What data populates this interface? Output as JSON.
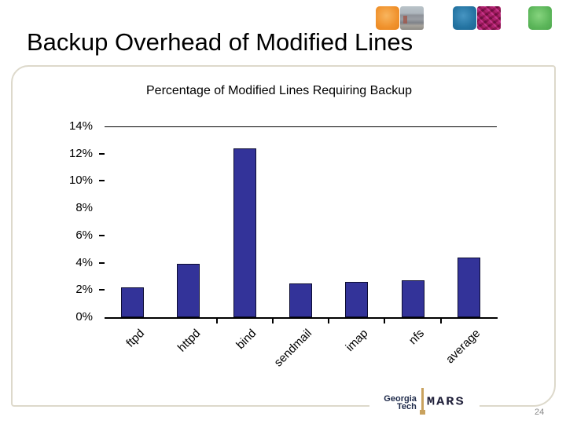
{
  "slide": {
    "title": "Backup Overhead of Modified Lines",
    "page_number": "24"
  },
  "header_logos": [
    "orange-square",
    "campus-photo-square",
    "blue-square",
    "purple-texture-square",
    "green-square"
  ],
  "chart_data": {
    "type": "bar",
    "title": "Percentage of Modified Lines Requiring Backup",
    "categories": [
      "ftpd",
      "httpd",
      "bind",
      "sendmail",
      "imap",
      "nfs",
      "average"
    ],
    "values": [
      2.2,
      3.9,
      12.4,
      2.5,
      2.6,
      2.7,
      4.4
    ],
    "unit": "%",
    "xlabel": "",
    "ylabel": "",
    "ylim": [
      0,
      14
    ],
    "y_ticks": [
      {
        "value": 14,
        "label": "14%"
      },
      {
        "value": 12,
        "label": "12%"
      },
      {
        "value": 10,
        "label": "10%"
      },
      {
        "value": 8,
        "label": "8%"
      },
      {
        "value": 6,
        "label": "6%"
      },
      {
        "value": 4,
        "label": "4%"
      },
      {
        "value": 2,
        "label": "2%"
      },
      {
        "value": 0,
        "label": "0%"
      }
    ],
    "y_dash_values": [
      12,
      10,
      6,
      4,
      2
    ],
    "top_gridline_value": 14,
    "bar_color": "#333399",
    "grid": "top-line-only",
    "legend_position": "none",
    "x_label_rotation_deg": -45
  },
  "footer": {
    "org_line1": "Georgia",
    "org_line2": "Tech",
    "lab_name": "MARS"
  }
}
